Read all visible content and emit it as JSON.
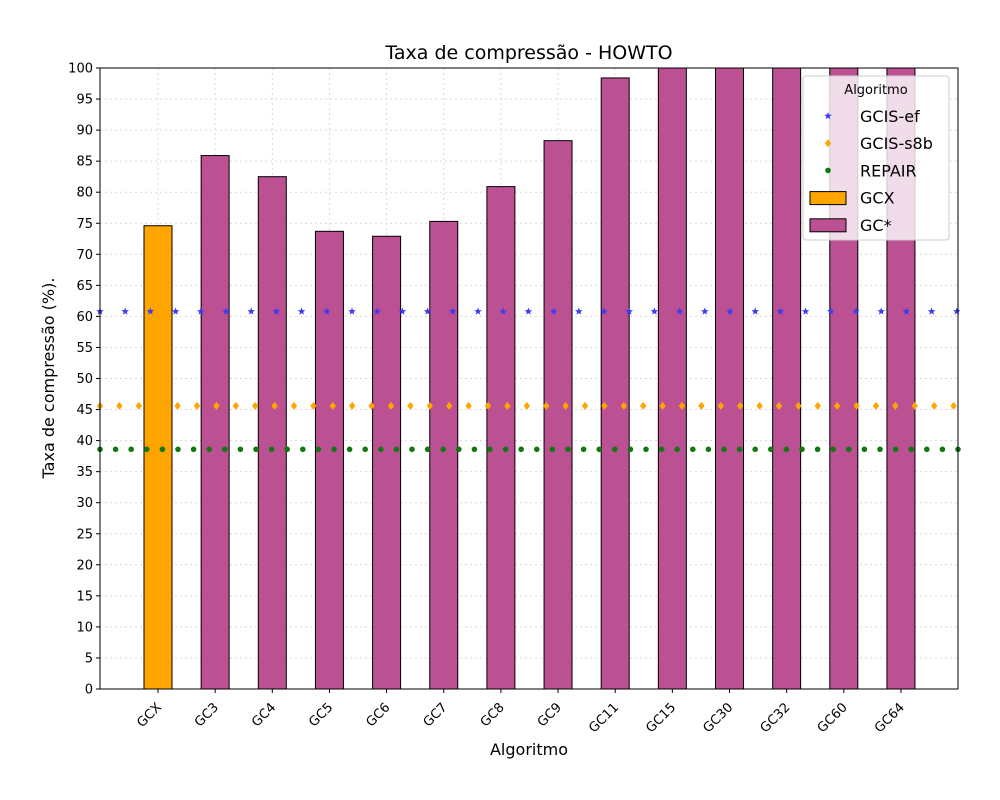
{
  "chart_data": {
    "type": "bar",
    "title": "Taxa de compressão -  HOWTO",
    "xlabel": "Algoritmo",
    "ylabel": "Taxa de compressão (%).",
    "ylim": [
      0,
      100
    ],
    "ytick_step": 5,
    "grid": true,
    "categories": [
      "GCX",
      "GC3",
      "GC4",
      "GC5",
      "GC6",
      "GC7",
      "GC8",
      "GC9",
      "GC11",
      "GC15",
      "GC30",
      "GC32",
      "GC60",
      "GC64"
    ],
    "bars": [
      {
        "category": "GCX",
        "value": 74.6,
        "group": "GCX"
      },
      {
        "category": "GC3",
        "value": 85.9,
        "group": "GC*"
      },
      {
        "category": "GC4",
        "value": 82.5,
        "group": "GC*"
      },
      {
        "category": "GC5",
        "value": 73.7,
        "group": "GC*"
      },
      {
        "category": "GC6",
        "value": 72.9,
        "group": "GC*"
      },
      {
        "category": "GC7",
        "value": 75.3,
        "group": "GC*"
      },
      {
        "category": "GC8",
        "value": 80.9,
        "group": "GC*"
      },
      {
        "category": "GC9",
        "value": 88.3,
        "group": "GC*"
      },
      {
        "category": "GC11",
        "value": 98.4,
        "group": "GC*"
      },
      {
        "category": "GC15",
        "value": 100,
        "group": "GC*"
      },
      {
        "category": "GC30",
        "value": 100,
        "group": "GC*"
      },
      {
        "category": "GC32",
        "value": 100,
        "group": "GC*"
      },
      {
        "category": "GC60",
        "value": 100,
        "group": "GC*"
      },
      {
        "category": "GC64",
        "value": 100,
        "group": "GC*"
      }
    ],
    "reference_lines": [
      {
        "name": "GCIS-ef",
        "value": 60.8,
        "marker": "star",
        "color": "#3b3bf5"
      },
      {
        "name": "GCIS-s8b",
        "value": 45.6,
        "marker": "diamond",
        "color": "#ffa500"
      },
      {
        "name": "REPAIR",
        "value": 38.6,
        "marker": "circle",
        "color": "#117711"
      }
    ],
    "legend": {
      "title": "Algoritmo",
      "position": "top-right",
      "entries": [
        {
          "label": "GCIS-ef",
          "kind": "star",
          "color": "#3b3bf5"
        },
        {
          "label": "GCIS-s8b",
          "kind": "diamond",
          "color": "#ffa500"
        },
        {
          "label": "REPAIR",
          "kind": "circle",
          "color": "#117711"
        },
        {
          "label": "GCX",
          "kind": "bar",
          "color": "#ffa500"
        },
        {
          "label": "GC*",
          "kind": "bar",
          "color": "#bb5093"
        }
      ]
    },
    "colors": {
      "GCX": "#ffa500",
      "GC*": "#bb5093"
    }
  }
}
